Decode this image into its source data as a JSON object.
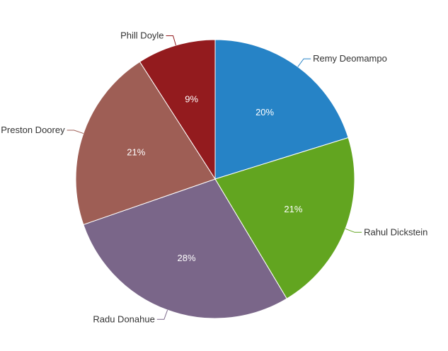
{
  "chart_data": {
    "type": "pie",
    "title": "",
    "slices": [
      {
        "label": "Remy Deomampo",
        "value": 20,
        "display": "20%",
        "color": "#2683c6"
      },
      {
        "label": "Rahul Dickstein",
        "value": 21,
        "display": "21%",
        "color": "#62a520"
      },
      {
        "label": "Radu Donahue",
        "value": 28,
        "display": "28%",
        "color": "#7a6689"
      },
      {
        "label": "Preston Doorey",
        "value": 21,
        "display": "21%",
        "color": "#9e5e55"
      },
      {
        "label": "Phill Doyle",
        "value": 9,
        "display": "9%",
        "color": "#931b1e"
      }
    ]
  }
}
